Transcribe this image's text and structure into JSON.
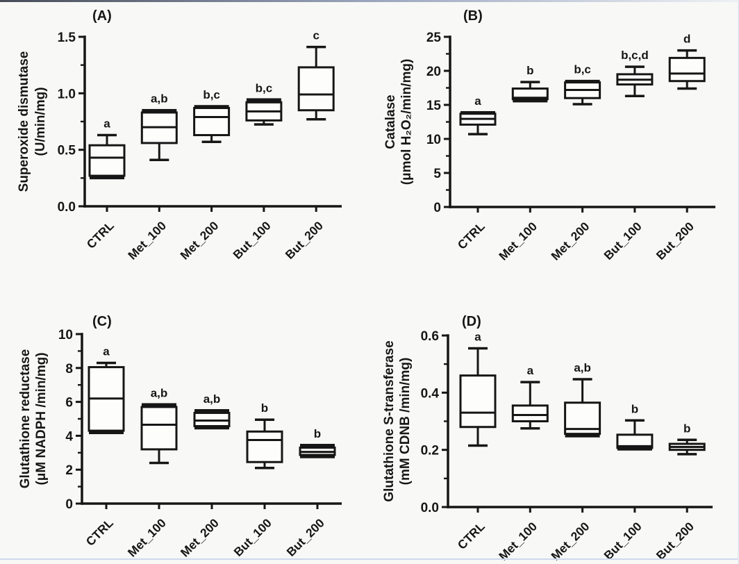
{
  "figure": {
    "background": "#f8f9f6",
    "ink": "#161616",
    "box_fill": "#fdfdfc",
    "top_border_gradient": [
      "#474c58",
      "#9aa5bd",
      "#eef1f6"
    ],
    "bottom_border_color": "#cdd8eb",
    "right_border_color": "#e4e9f3"
  },
  "chart_data": [
    {
      "type": "box",
      "panel_label": "(A)",
      "ylabel": [
        "Superoxide dismutase",
        "(U/min/mg)"
      ],
      "categories": [
        "CTRL",
        "Met_100",
        "Met_200",
        "But_100",
        "But_200"
      ],
      "ylim": [
        0,
        1.5
      ],
      "yticks": [
        0,
        0.5,
        1.0,
        1.5
      ],
      "ytick_labels": [
        "0.0",
        "0.5",
        "1.0",
        "1.5"
      ],
      "minor_ticks_between": 1,
      "grid": false,
      "boxes": [
        {
          "category": "CTRL",
          "min": 0.25,
          "q1": 0.27,
          "median": 0.43,
          "q3": 0.54,
          "max": 0.63,
          "sig_label": "a"
        },
        {
          "category": "Met_100",
          "min": 0.41,
          "q1": 0.56,
          "median": 0.7,
          "q3": 0.83,
          "max": 0.85,
          "sig_label": "a,b"
        },
        {
          "category": "Met_200",
          "min": 0.57,
          "q1": 0.63,
          "median": 0.79,
          "q3": 0.87,
          "max": 0.885,
          "sig_label": "b,c"
        },
        {
          "category": "But_100",
          "min": 0.725,
          "q1": 0.76,
          "median": 0.84,
          "q3": 0.92,
          "max": 0.945,
          "sig_label": "b,c"
        },
        {
          "category": "But_200",
          "min": 0.77,
          "q1": 0.85,
          "median": 0.99,
          "q3": 1.23,
          "max": 1.41,
          "sig_label": "c"
        }
      ]
    },
    {
      "type": "box",
      "panel_label": "(B)",
      "ylabel": [
        "Catalase",
        "(μmol H₂O₂/min/mg)"
      ],
      "categories": [
        "CTRL",
        "Met_100",
        "Met_200",
        "But_100",
        "But_200"
      ],
      "ylim": [
        0,
        25
      ],
      "yticks": [
        0,
        5,
        10,
        15,
        20,
        25
      ],
      "ytick_labels": [
        "0",
        "5",
        "10",
        "15",
        "20",
        "25"
      ],
      "minor_ticks_between": 1,
      "grid": false,
      "boxes": [
        {
          "category": "CTRL",
          "min": 10.7,
          "q1": 12.1,
          "median": 12.95,
          "q3": 13.7,
          "max": 13.9,
          "sig_label": "a"
        },
        {
          "category": "Met_100",
          "min": 15.55,
          "q1": 15.85,
          "median": 16.05,
          "q3": 17.4,
          "max": 18.35,
          "sig_label": "b"
        },
        {
          "category": "Met_200",
          "min": 15.1,
          "q1": 16.0,
          "median": 17.2,
          "q3": 18.3,
          "max": 18.5,
          "sig_label": "b,c"
        },
        {
          "category": "But_100",
          "min": 16.3,
          "q1": 18.0,
          "median": 18.7,
          "q3": 19.5,
          "max": 20.6,
          "sig_label": "b,c,d"
        },
        {
          "category": "But_200",
          "min": 17.4,
          "q1": 18.5,
          "median": 19.6,
          "q3": 21.9,
          "max": 23.0,
          "sig_label": "d"
        }
      ]
    },
    {
      "type": "box",
      "panel_label": "(C)",
      "ylabel": [
        "Glutathione reductase",
        "(μM NADPH /min/mg)"
      ],
      "categories": [
        "CTRL",
        "Met_100",
        "Met_200",
        "But_100",
        "But_200"
      ],
      "ylim": [
        0,
        10
      ],
      "yticks": [
        0,
        2,
        4,
        6,
        8,
        10
      ],
      "ytick_labels": [
        "0",
        "2",
        "4",
        "6",
        "8",
        "10"
      ],
      "minor_ticks_between": 1,
      "grid": false,
      "boxes": [
        {
          "category": "CTRL",
          "min": 4.17,
          "q1": 4.3,
          "median": 6.2,
          "q3": 8.05,
          "max": 8.3,
          "sig_label": "a"
        },
        {
          "category": "Met_100",
          "min": 2.4,
          "q1": 3.2,
          "median": 4.65,
          "q3": 5.7,
          "max": 5.85,
          "sig_label": "a,b"
        },
        {
          "category": "Met_200",
          "min": 4.45,
          "q1": 4.57,
          "median": 4.9,
          "q3": 5.35,
          "max": 5.5,
          "sig_label": "a,b"
        },
        {
          "category": "But_100",
          "min": 2.1,
          "q1": 2.45,
          "median": 3.75,
          "q3": 4.25,
          "max": 4.95,
          "sig_label": "b"
        },
        {
          "category": "But_200",
          "min": 2.75,
          "q1": 2.87,
          "median": 3.05,
          "q3": 3.3,
          "max": 3.45,
          "sig_label": "b"
        }
      ]
    },
    {
      "type": "box",
      "panel_label": "(D)",
      "ylabel": [
        "Glutathione S-transferase",
        "(mM CDNB /min/mg)"
      ],
      "categories": [
        "CTRL",
        "Met_100",
        "Met_200",
        "But_100",
        "But_200"
      ],
      "ylim": [
        0,
        0.6
      ],
      "yticks": [
        0,
        0.2,
        0.4,
        0.6
      ],
      "ytick_labels": [
        "0.0",
        "0.2",
        "0.4",
        "0.6"
      ],
      "minor_ticks_between": 1,
      "grid": false,
      "boxes": [
        {
          "category": "CTRL",
          "min": 0.215,
          "q1": 0.28,
          "median": 0.33,
          "q3": 0.46,
          "max": 0.555,
          "sig_label": "a"
        },
        {
          "category": "Met_100",
          "min": 0.275,
          "q1": 0.3,
          "median": 0.322,
          "q3": 0.355,
          "max": 0.437,
          "sig_label": "a"
        },
        {
          "category": "Met_200",
          "min": 0.248,
          "q1": 0.256,
          "median": 0.273,
          "q3": 0.365,
          "max": 0.447,
          "sig_label": "a,b"
        },
        {
          "category": "But_100",
          "min": 0.202,
          "q1": 0.207,
          "median": 0.213,
          "q3": 0.253,
          "max": 0.303,
          "sig_label": "b"
        },
        {
          "category": "But_200",
          "min": 0.185,
          "q1": 0.2,
          "median": 0.21,
          "q3": 0.221,
          "max": 0.235,
          "sig_label": "b"
        }
      ]
    }
  ]
}
